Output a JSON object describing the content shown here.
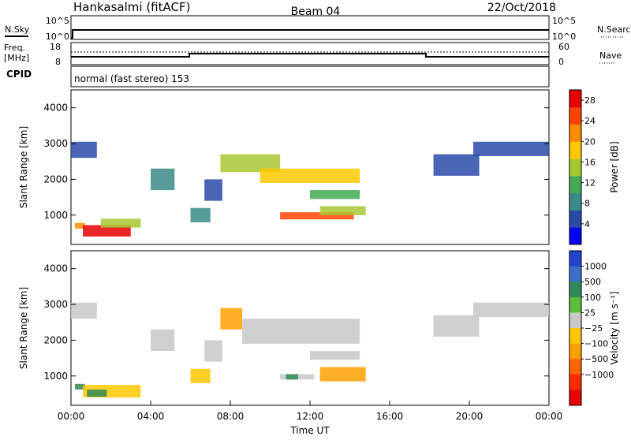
{
  "header": {
    "site": "Hankasalmi (fitACF)",
    "beam": "Beam 04",
    "date": "22/Oct/2018"
  },
  "status_panel": {
    "left_labels": {
      "nsky": "N.Sky",
      "freq_line1": "Freq.",
      "freq_line2": "[MHz]",
      "cpid": "CPID"
    },
    "right_labels": {
      "nsearch": "N.Search",
      "nave": "Nave"
    },
    "noise_ticks": {
      "top": "10^5",
      "bottom": "10^0"
    },
    "freq_ticks": {
      "top": "18",
      "bottom": "8"
    },
    "nave_ticks": {
      "top": "60",
      "bottom": "0"
    },
    "cpid_text": "normal (fast stereo) 153"
  },
  "chart_data": [
    {
      "type": "heatmap",
      "panel": "power",
      "ylabel": "Slant Range [km]",
      "xlabel": "",
      "xlim": [
        0,
        24
      ],
      "ylim": [
        180,
        4500
      ],
      "yticks": [
        "1000",
        "2000",
        "3000",
        "4000"
      ],
      "colorbar": {
        "label": "Power [dB]",
        "ticks": [
          "4",
          "8",
          "12",
          "16",
          "20",
          "24",
          "28"
        ],
        "range": [
          0,
          30
        ],
        "colors": [
          "#0000ff",
          "#2a4aa8",
          "#3a8a8a",
          "#44aa55",
          "#a8c832",
          "#ffc800",
          "#ff8c00",
          "#ff4400",
          "#e60000"
        ]
      },
      "regions": [
        {
          "t0": 0.0,
          "t1": 1.3,
          "r0": 2600,
          "r1": 3050,
          "v": 6
        },
        {
          "t0": 0.2,
          "t1": 0.7,
          "r0": 620,
          "r1": 780,
          "v": 22
        },
        {
          "t0": 0.6,
          "t1": 3.0,
          "r0": 400,
          "r1": 720,
          "v": 28
        },
        {
          "t0": 1.5,
          "t1": 3.5,
          "r0": 650,
          "r1": 900,
          "v": 14
        },
        {
          "t0": 4.0,
          "t1": 5.2,
          "r0": 1700,
          "r1": 2300,
          "v": 8
        },
        {
          "t0": 6.0,
          "t1": 7.0,
          "r0": 800,
          "r1": 1200,
          "v": 8
        },
        {
          "t0": 6.7,
          "t1": 7.6,
          "r0": 1400,
          "r1": 2000,
          "v": 6
        },
        {
          "t0": 7.5,
          "t1": 10.5,
          "r0": 2200,
          "r1": 2700,
          "v": 14
        },
        {
          "t0": 9.5,
          "t1": 14.5,
          "r0": 1900,
          "r1": 2300,
          "v": 18
        },
        {
          "t0": 10.5,
          "t1": 14.2,
          "r0": 880,
          "r1": 1080,
          "v": 24
        },
        {
          "t0": 12.5,
          "t1": 14.8,
          "r0": 1000,
          "r1": 1250,
          "v": 16
        },
        {
          "t0": 12.0,
          "t1": 14.5,
          "r0": 1450,
          "r1": 1700,
          "v": 12
        },
        {
          "t0": 18.2,
          "t1": 20.5,
          "r0": 2100,
          "r1": 2700,
          "v": 6
        },
        {
          "t0": 20.2,
          "t1": 24.0,
          "r0": 2650,
          "r1": 3050,
          "v": 6
        }
      ]
    },
    {
      "type": "heatmap",
      "panel": "velocity",
      "ylabel": "Slant Range [km]",
      "xlabel": "Time UT",
      "xlim": [
        0,
        24
      ],
      "ylim": [
        180,
        4500
      ],
      "xticks": [
        "00:00",
        "04:00",
        "08:00",
        "12:00",
        "16:00",
        "20:00",
        "00:00"
      ],
      "yticks": [
        "1000",
        "2000",
        "3000",
        "4000"
      ],
      "colorbar": {
        "label": "Velocity [m s⁻¹]",
        "ticks": [
          "1000",
          "500",
          "100",
          "25",
          "−25",
          "−100",
          "−500",
          "−1000"
        ],
        "colors": [
          "#2244cc",
          "#3a6ec8",
          "#2e8b57",
          "#5abe3c",
          "#c8c8c8",
          "#ffc800",
          "#ffa000",
          "#ff6400",
          "#ff2a00",
          "#e60000"
        ]
      },
      "regions": [
        {
          "t0": 0.0,
          "t1": 1.3,
          "r0": 2600,
          "r1": 3050,
          "v": 0
        },
        {
          "t0": 0.2,
          "t1": 0.7,
          "r0": 620,
          "r1": 780,
          "v": 150
        },
        {
          "t0": 0.6,
          "t1": 3.5,
          "r0": 400,
          "r1": 750,
          "v": -100
        },
        {
          "t0": 0.8,
          "t1": 1.8,
          "r0": 420,
          "r1": 620,
          "v": 150
        },
        {
          "t0": 4.0,
          "t1": 5.2,
          "r0": 1700,
          "r1": 2300,
          "v": 0
        },
        {
          "t0": 6.0,
          "t1": 7.0,
          "r0": 800,
          "r1": 1200,
          "v": -80
        },
        {
          "t0": 6.7,
          "t1": 7.6,
          "r0": 1400,
          "r1": 2000,
          "v": 0
        },
        {
          "t0": 7.5,
          "t1": 8.6,
          "r0": 2300,
          "r1": 2900,
          "v": -500
        },
        {
          "t0": 8.6,
          "t1": 14.5,
          "r0": 1900,
          "r1": 2600,
          "v": 0
        },
        {
          "t0": 10.5,
          "t1": 12.2,
          "r0": 900,
          "r1": 1050,
          "v": 0
        },
        {
          "t0": 10.8,
          "t1": 11.4,
          "r0": 900,
          "r1": 1050,
          "v": 150
        },
        {
          "t0": 12.5,
          "t1": 14.8,
          "r0": 850,
          "r1": 1250,
          "v": -500
        },
        {
          "t0": 12.0,
          "t1": 14.5,
          "r0": 1450,
          "r1": 1700,
          "v": 0
        },
        {
          "t0": 18.2,
          "t1": 20.5,
          "r0": 2100,
          "r1": 2700,
          "v": 0
        },
        {
          "t0": 20.2,
          "t1": 24.0,
          "r0": 2650,
          "r1": 3050,
          "v": 0
        }
      ]
    }
  ]
}
